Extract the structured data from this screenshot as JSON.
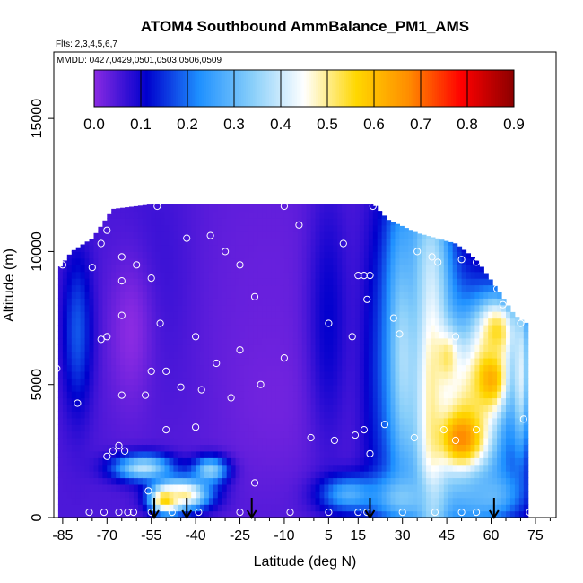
{
  "chart_data": {
    "type": "heatmap",
    "title": "ATOM4 Southbound AmmBalance_PM1_AMS",
    "subtitle_flights": "Flts: 2,3,4,5,6,7",
    "subtitle_dates": "MMDD: 0427,0429,0501,0503,0506,0509",
    "xlabel": "Latitude (deg N)",
    "ylabel": "Altitude (m)",
    "xlim": [
      -88,
      82
    ],
    "ylim": [
      0,
      17500
    ],
    "x_ticks": [
      -85,
      -70,
      -55,
      -40,
      -25,
      -10,
      5,
      15,
      30,
      45,
      60,
      75
    ],
    "x_minor_ticks": [
      -80,
      -75,
      -65,
      -60,
      -50,
      -45,
      -35,
      -30,
      -20,
      -15,
      -5,
      0,
      10,
      20,
      25,
      35,
      40,
      50,
      55,
      65,
      70,
      80
    ],
    "y_ticks": [
      0,
      5000,
      10000,
      15000
    ],
    "colorbar": {
      "min": 0.0,
      "max": 0.9,
      "ticks": [
        "0.0",
        "0.1",
        "0.2",
        "0.3",
        "0.4",
        "0.5",
        "0.6",
        "0.7",
        "0.8",
        "0.9"
      ],
      "colors": [
        "#8a2be2",
        "#0000cd",
        "#1e90ff",
        "#87cefa",
        "#ffffff",
        "#ffd700",
        "#ff8c00",
        "#ff0000",
        "#8b0000"
      ]
    },
    "features": [
      {
        "lat": -15,
        "alt": 9500,
        "value": 0.03,
        "sx": 38,
        "sy": 6000
      },
      {
        "lat": -15,
        "alt": 4500,
        "value": 0.02,
        "sx": 32,
        "sy": 3500
      },
      {
        "lat": -45,
        "alt": 4000,
        "value": 0.04,
        "sx": 16,
        "sy": 3000
      },
      {
        "lat": -55,
        "alt": 9000,
        "value": 0.07,
        "sx": 14,
        "sy": 5000
      },
      {
        "lat": 5,
        "alt": 7500,
        "value": 0.11,
        "sx": 7,
        "sy": 5000
      },
      {
        "lat": 22,
        "alt": 5500,
        "value": 0.13,
        "sx": 7,
        "sy": 7000
      },
      {
        "lat": 30,
        "alt": 6500,
        "value": 0.36,
        "sx": 6,
        "sy": 6000
      },
      {
        "lat": 38,
        "alt": 10000,
        "value": 0.26,
        "sx": 9,
        "sy": 2500
      },
      {
        "lat": 40,
        "alt": 4500,
        "value": 0.5,
        "sx": 6,
        "sy": 6500
      },
      {
        "lat": 52,
        "alt": 4000,
        "value": 0.48,
        "sx": 14,
        "sy": 4000
      },
      {
        "lat": 50,
        "alt": 3000,
        "value": 0.68,
        "sx": 7,
        "sy": 1000
      },
      {
        "lat": 60,
        "alt": 5300,
        "value": 0.64,
        "sx": 6,
        "sy": 1300
      },
      {
        "lat": 62,
        "alt": 7000,
        "value": 0.55,
        "sx": 7,
        "sy": 1300
      },
      {
        "lat": 45,
        "alt": 6000,
        "value": 0.52,
        "sx": 4,
        "sy": 1000
      },
      {
        "lat": 70,
        "alt": 5500,
        "value": 0.42,
        "sx": 3,
        "sy": 3000
      },
      {
        "lat": 30,
        "alt": 800,
        "value": 0.33,
        "sx": 10,
        "sy": 800
      },
      {
        "lat": 12,
        "alt": 900,
        "value": 0.28,
        "sx": 10,
        "sy": 700
      },
      {
        "lat": 60,
        "alt": 900,
        "value": 0.3,
        "sx": 10,
        "sy": 900
      },
      {
        "lat": -50,
        "alt": 700,
        "value": 0.65,
        "sx": 5,
        "sy": 500
      },
      {
        "lat": -44,
        "alt": 900,
        "value": 0.5,
        "sx": 9,
        "sy": 600
      },
      {
        "lat": -58,
        "alt": 1900,
        "value": 0.4,
        "sx": 10,
        "sy": 500
      },
      {
        "lat": -35,
        "alt": 1800,
        "value": 0.35,
        "sx": 6,
        "sy": 500
      },
      {
        "lat": -62,
        "alt": 7000,
        "value": 0.0,
        "sx": 8,
        "sy": 3000
      },
      {
        "lat": -80,
        "alt": 7000,
        "value": 0.18,
        "sx": 5,
        "sy": 3000
      }
    ],
    "sample_points": [
      [
        -53,
        11700
      ],
      [
        -10,
        11700
      ],
      [
        -5,
        11000
      ],
      [
        20,
        11700
      ],
      [
        -70,
        10800
      ],
      [
        -35,
        10600
      ],
      [
        -43,
        10500
      ],
      [
        -30,
        10000
      ],
      [
        -72,
        10300
      ],
      [
        -75,
        9400
      ],
      [
        -85,
        9500
      ],
      [
        -65,
        9800
      ],
      [
        -60,
        9500
      ],
      [
        -25,
        9500
      ],
      [
        10,
        10300
      ],
      [
        35,
        10000
      ],
      [
        40,
        9800
      ],
      [
        42,
        9600
      ],
      [
        50,
        9700
      ],
      [
        55,
        9600
      ],
      [
        62,
        8600
      ],
      [
        64,
        8000
      ],
      [
        -55,
        9000
      ],
      [
        -65,
        8900
      ],
      [
        15,
        9100
      ],
      [
        17,
        9100
      ],
      [
        19,
        9100
      ],
      [
        18,
        8200
      ],
      [
        -20,
        8300
      ],
      [
        -65,
        7600
      ],
      [
        -70,
        6800
      ],
      [
        -72,
        6700
      ],
      [
        -52,
        7300
      ],
      [
        -40,
        6800
      ],
      [
        -25,
        6300
      ],
      [
        5,
        7300
      ],
      [
        13,
        6800
      ],
      [
        27,
        7500
      ],
      [
        29,
        6900
      ],
      [
        48,
        6800
      ],
      [
        70,
        7300
      ],
      [
        -87,
        5600
      ],
      [
        -55,
        5500
      ],
      [
        -50,
        5500
      ],
      [
        -33,
        5800
      ],
      [
        -10,
        6000
      ],
      [
        -18,
        5000
      ],
      [
        -38,
        4800
      ],
      [
        -45,
        4900
      ],
      [
        -57,
        4600
      ],
      [
        -65,
        4600
      ],
      [
        -80,
        4300
      ],
      [
        -28,
        4500
      ],
      [
        -40,
        3400
      ],
      [
        -50,
        3300
      ],
      [
        17,
        3300
      ],
      [
        24,
        3500
      ],
      [
        44,
        3300
      ],
      [
        48,
        2900
      ],
      [
        55,
        3300
      ],
      [
        71,
        3700
      ],
      [
        -1,
        3000
      ],
      [
        7,
        2900
      ],
      [
        14,
        3100
      ],
      [
        19,
        2400
      ],
      [
        34,
        3000
      ],
      [
        -68,
        2500
      ],
      [
        -66,
        2700
      ],
      [
        -64,
        2500
      ],
      [
        -70,
        2300
      ],
      [
        -20,
        1300
      ],
      [
        -56,
        1000
      ],
      [
        -76,
        200
      ],
      [
        -71,
        200
      ],
      [
        -66,
        200
      ],
      [
        -63,
        200
      ],
      [
        -61,
        200
      ],
      [
        -55,
        200
      ],
      [
        -48,
        200
      ],
      [
        -39,
        200
      ],
      [
        -25,
        200
      ],
      [
        -8,
        200
      ],
      [
        5,
        200
      ],
      [
        15,
        200
      ],
      [
        18,
        200
      ],
      [
        30,
        200
      ],
      [
        41,
        200
      ],
      [
        50,
        200
      ],
      [
        55,
        200
      ],
      [
        73,
        200
      ]
    ],
    "arrows_lat": [
      -54,
      -43,
      -21,
      19,
      61
    ]
  }
}
